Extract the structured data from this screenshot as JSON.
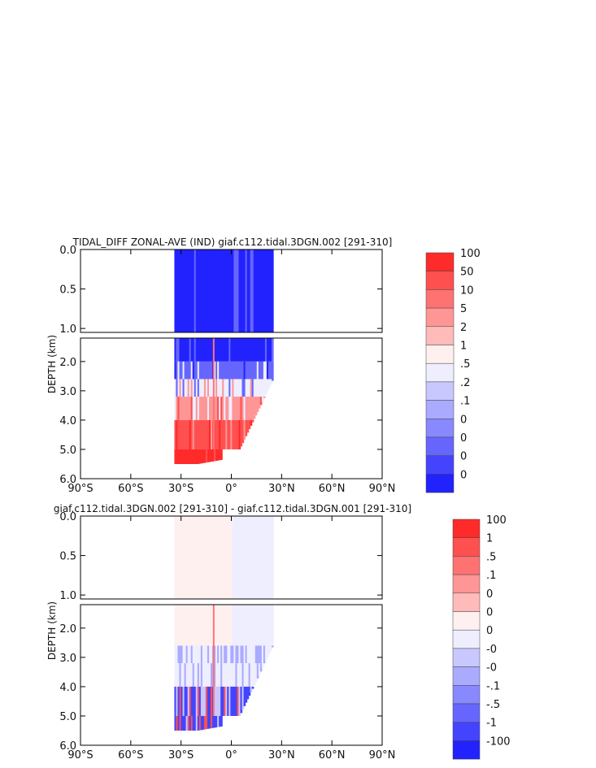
{
  "chart_data": [
    {
      "type": "heatmap",
      "title": "TIDAL_DIFF ZONAL-AVE (IND) giaf.c112.tidal.3DGN.002 [291-310]",
      "ylabel": "DEPTH (km)",
      "xlabel": "",
      "x_ticks": [
        "90°S",
        "60°S",
        "30°S",
        "0°",
        "30°N",
        "60°N",
        "90°N"
      ],
      "xlim": [
        -90,
        90
      ],
      "upper_ylim": [
        1.05,
        0.0
      ],
      "upper_yticks": [
        "0.0",
        "0.5",
        "1.0"
      ],
      "lower_ylim": [
        6.0,
        1.2
      ],
      "lower_yticks": [
        "2.0",
        "3.0",
        "4.0",
        "5.0",
        "6.0"
      ],
      "data_extent_lat": [
        -34,
        25
      ],
      "colorbar_labels": [
        "100",
        "50",
        "10",
        "5",
        "2",
        "1",
        ".5",
        ".2",
        ".1",
        "0",
        "0",
        "0",
        "0"
      ],
      "colorbar_colors": [
        "#ff2a2a",
        "#ff5050",
        "#ff7272",
        "#ff9696",
        "#ffbaba",
        "#fff0f0",
        "#eeeeff",
        "#c8c8ff",
        "#aaaaff",
        "#8888ff",
        "#6666ff",
        "#4444ff",
        "#2222ff"
      ]
    },
    {
      "type": "heatmap",
      "title": "giaf.c112.tidal.3DGN.002 [291-310] - giaf.c112.tidal.3DGN.001 [291-310]",
      "ylabel": "DEPTH (km)",
      "xlabel": "",
      "x_ticks": [
        "90°S",
        "60°S",
        "30°S",
        "0°",
        "30°N",
        "60°N",
        "90°N"
      ],
      "xlim": [
        -90,
        90
      ],
      "upper_ylim": [
        1.05,
        0.0
      ],
      "upper_yticks": [
        "0.0",
        "0.5",
        "1.0"
      ],
      "lower_ylim": [
        6.0,
        1.2
      ],
      "lower_yticks": [
        "2.0",
        "3.0",
        "4.0",
        "5.0",
        "6.0"
      ],
      "data_extent_lat": [
        -34,
        25
      ],
      "colorbar_labels": [
        "100",
        "1",
        ".5",
        ".1",
        "0",
        "0",
        "0",
        "-0",
        "-0",
        "-.1",
        "-.5",
        "-1",
        "-100"
      ],
      "colorbar_colors": [
        "#ff2a2a",
        "#ff5050",
        "#ff7272",
        "#ff9696",
        "#ffbaba",
        "#fff0f0",
        "#eeeeff",
        "#c8c8ff",
        "#aaaaff",
        "#8888ff",
        "#6666ff",
        "#4444ff",
        "#2222ff"
      ]
    }
  ]
}
